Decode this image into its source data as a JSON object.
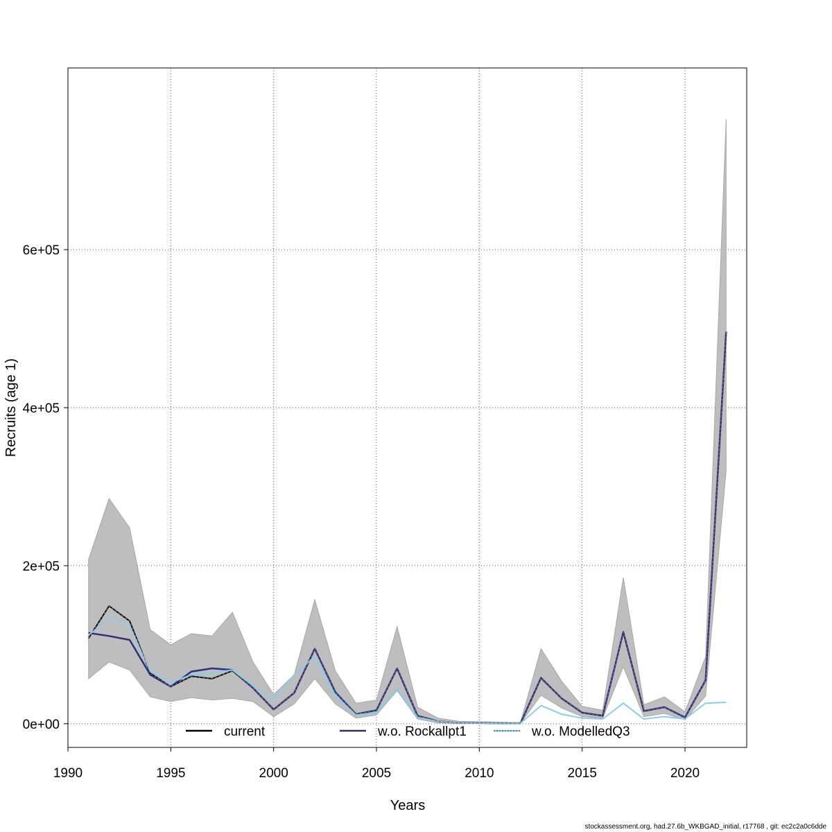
{
  "chart_data": {
    "type": "line",
    "xlabel": "Years",
    "ylabel": "Recruits (age 1)",
    "xlim": [
      1990,
      2023
    ],
    "ylim": [
      -30000,
      830000
    ],
    "xticks": [
      1990,
      1995,
      2000,
      2005,
      2010,
      2015,
      2020
    ],
    "xtick_labels": [
      "1990",
      "1995",
      "2000",
      "2005",
      "2010",
      "2015",
      "2020"
    ],
    "yticks": [
      0,
      200000,
      400000,
      600000
    ],
    "ytick_labels": [
      "0e+00",
      "2e+05",
      "4e+05",
      "6e+05"
    ],
    "grid": true,
    "legend_position": "bottom",
    "x": [
      1991,
      1992,
      1993,
      1994,
      1995,
      1996,
      1997,
      1998,
      1999,
      2000,
      2001,
      2002,
      2003,
      2004,
      2005,
      2006,
      2007,
      2008,
      2009,
      2010,
      2011,
      2012,
      2013,
      2014,
      2015,
      2016,
      2017,
      2018,
      2019,
      2020,
      2021,
      2022
    ],
    "confidence_band": {
      "color": "#bebebe",
      "lower": [
        57000,
        78000,
        68000,
        34000,
        28000,
        33000,
        30000,
        32000,
        28000,
        9000,
        25000,
        57000,
        25000,
        7000,
        11000,
        42000,
        6000,
        1000,
        500,
        300,
        100,
        200,
        36000,
        20000,
        9000,
        7000,
        72000,
        9000,
        13000,
        5000,
        35000,
        320000
      ],
      "upper": [
        208000,
        285000,
        248000,
        119000,
        100000,
        114000,
        111000,
        141000,
        78000,
        37000,
        62000,
        157000,
        67000,
        26000,
        30000,
        123000,
        21000,
        7000,
        3000,
        2500,
        2000,
        1500,
        95000,
        54000,
        22000,
        17000,
        185000,
        24000,
        34000,
        15000,
        85000,
        765000
      ]
    },
    "series": [
      {
        "name": "current",
        "color": "#000000",
        "dash": "solid",
        "values": [
          108000,
          149000,
          130000,
          64000,
          47000,
          60000,
          57000,
          67000,
          45000,
          18000,
          39000,
          95000,
          40000,
          12000,
          17000,
          70000,
          10000,
          3000,
          1000,
          1000,
          500,
          500,
          58000,
          32000,
          14000,
          10000,
          116000,
          16000,
          21000,
          8000,
          55000,
          496000
        ]
      },
      {
        "name": "w.o. Rockallpt1",
        "color": "#2e2e7a",
        "dash": "dashed",
        "values": [
          115000,
          111000,
          106000,
          62000,
          47000,
          66000,
          70000,
          68000,
          45000,
          18000,
          39000,
          95000,
          40000,
          12000,
          17000,
          70000,
          10000,
          3000,
          1000,
          1000,
          500,
          500,
          58000,
          32000,
          14000,
          10000,
          116000,
          16000,
          21000,
          8000,
          55000,
          496000
        ]
      },
      {
        "name": "w.o. ModelledQ3",
        "color": "#87ceeb",
        "dash": "dotted",
        "values": [
          112000,
          134000,
          124000,
          66000,
          52000,
          62000,
          64000,
          68000,
          48000,
          30000,
          62000,
          85000,
          36000,
          11000,
          14000,
          44000,
          8000,
          3000,
          1000,
          1000,
          500,
          500,
          23000,
          12000,
          7000,
          6000,
          26000,
          6000,
          9000,
          6000,
          26000,
          27000
        ]
      }
    ]
  },
  "footer_text": "stockassessment.org, had.27.6b_WKBGAD_initial, r17768 , git: ec2c2a0c6dde"
}
